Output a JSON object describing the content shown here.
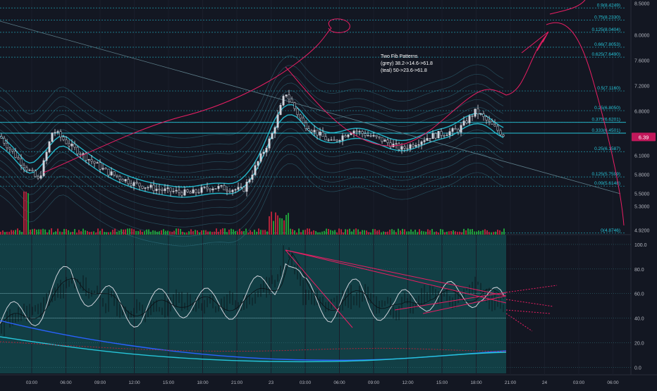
{
  "chart_data": {
    "type": "candlestick",
    "colors": {
      "background": "#131722",
      "upper_pane_grid": "#1e2230",
      "lower_pane_bg": "#123f45",
      "up": "#d1d4dc",
      "down": "#d1d4dc",
      "vol_up": "#1f9a3a",
      "vol_down": "#b2233a",
      "fib_line": "#26c6da",
      "hline": "#26c6da",
      "band": "#3d8ea1",
      "band_inner": "#26c6da",
      "drawing": "#e91e63",
      "axis_text": "#b2b5be"
    },
    "annotation": {
      "lines": [
        "Two Fib Patterns",
        "(grey) 38.2->14.6->61.8",
        "(teal) 50->23.6->61.8"
      ]
    },
    "price_axis": {
      "ticks": [
        "8.5000",
        "8.0000",
        "7.6000",
        "7.2000",
        "6.8000",
        "6.4000",
        "6.1000",
        "5.8000",
        "5.5000",
        "5.3000",
        "4.9200"
      ],
      "range": [
        4.85,
        8.55
      ],
      "last_price": "6.39"
    },
    "fib_levels": [
      {
        "label": "0.9(8.4249)",
        "value": 8.4249
      },
      {
        "label": "0.75(8.2330)",
        "value": 8.233
      },
      {
        "label": "0.125(8.0404)",
        "value": 8.0404
      },
      {
        "label": "0.66(7.8053)",
        "value": 7.8053
      },
      {
        "label": "0.625(7.6490)",
        "value": 7.649
      },
      {
        "label": "0.5(7.1160)",
        "value": 7.116
      },
      {
        "label": "0.25(6.8050)",
        "value": 6.805
      },
      {
        "label": "0.375(6.6201)",
        "value": 6.6201
      },
      {
        "label": "0.333(6.4501)",
        "value": 6.4501
      },
      {
        "label": "0.25(6.1587)",
        "value": 6.1587
      },
      {
        "label": "0.125(5.7599)",
        "value": 5.7599
      },
      {
        "label": "0.09(5.6148)",
        "value": 5.6148
      },
      {
        "label": "0(4.8746)",
        "value": 4.8746
      }
    ],
    "oscillator": {
      "ticks": [
        "100.0",
        "80.0",
        "60.0",
        "40.0",
        "20.0",
        "0.0"
      ],
      "range": [
        -5,
        108
      ]
    },
    "time_axis": [
      "03:00",
      "06:00",
      "09:00",
      "12:00",
      "15:00",
      "18:00",
      "21:00",
      "23",
      "03:00",
      "06:00",
      "09:00",
      "12:00",
      "15:00",
      "18:00",
      "21:00",
      "24",
      "03:00",
      "06:00"
    ],
    "series_seed": {
      "anchors": [
        [
          0,
          6.4
        ],
        [
          25,
          6.05
        ],
        [
          55,
          5.7
        ],
        [
          75,
          6.5
        ],
        [
          100,
          6.25
        ],
        [
          150,
          5.85
        ],
        [
          190,
          5.65
        ],
        [
          230,
          5.55
        ],
        [
          270,
          5.5
        ],
        [
          300,
          5.6
        ],
        [
          345,
          5.55
        ],
        [
          385,
          6.4
        ],
        [
          405,
          7.1
        ],
        [
          430,
          6.6
        ],
        [
          470,
          6.3
        ],
        [
          500,
          6.5
        ],
        [
          540,
          6.35
        ],
        [
          570,
          6.2
        ],
        [
          610,
          6.4
        ],
        [
          650,
          6.5
        ],
        [
          675,
          6.8
        ],
        [
          700,
          6.55
        ],
        [
          718,
          6.39
        ]
      ],
      "osc_anchors": [
        [
          0,
          35
        ],
        [
          60,
          50
        ],
        [
          100,
          75
        ],
        [
          140,
          55
        ],
        [
          200,
          45
        ],
        [
          250,
          55
        ],
        [
          300,
          50
        ],
        [
          350,
          55
        ],
        [
          390,
          70
        ],
        [
          405,
          95
        ],
        [
          430,
          60
        ],
        [
          470,
          50
        ],
        [
          510,
          60
        ],
        [
          560,
          45
        ],
        [
          600,
          60
        ],
        [
          650,
          55
        ],
        [
          680,
          65
        ],
        [
          718,
          45
        ]
      ]
    }
  }
}
